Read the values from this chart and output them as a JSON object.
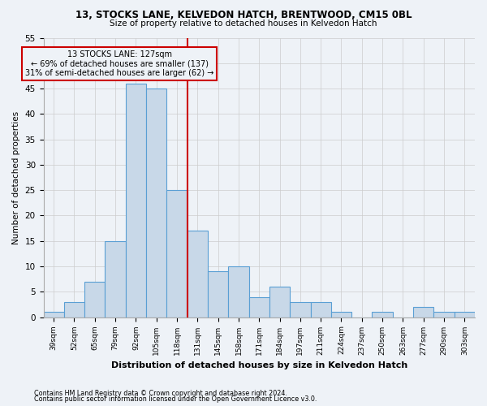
{
  "title1": "13, STOCKS LANE, KELVEDON HATCH, BRENTWOOD, CM15 0BL",
  "title2": "Size of property relative to detached houses in Kelvedon Hatch",
  "xlabel": "Distribution of detached houses by size in Kelvedon Hatch",
  "ylabel": "Number of detached properties",
  "footnote1": "Contains HM Land Registry data © Crown copyright and database right 2024.",
  "footnote2": "Contains public sector information licensed under the Open Government Licence v3.0.",
  "bin_labels": [
    "39sqm",
    "52sqm",
    "65sqm",
    "79sqm",
    "92sqm",
    "105sqm",
    "118sqm",
    "131sqm",
    "145sqm",
    "158sqm",
    "171sqm",
    "184sqm",
    "197sqm",
    "211sqm",
    "224sqm",
    "237sqm",
    "250sqm",
    "263sqm",
    "277sqm",
    "290sqm",
    "303sqm"
  ],
  "bar_values": [
    1,
    3,
    7,
    15,
    46,
    45,
    25,
    17,
    9,
    10,
    4,
    6,
    3,
    3,
    1,
    0,
    1,
    0,
    2,
    1,
    1
  ],
  "bar_color": "#c8d8e8",
  "bar_edgecolor": "#5a9fd4",
  "grid_color": "#cccccc",
  "bg_color": "#eef2f7",
  "annotation_box_color": "#cc0000",
  "annotation_line_color": "#cc0000",
  "annotation_title": "13 STOCKS LANE: 127sqm",
  "annotation_line1": "← 69% of detached houses are smaller (137)",
  "annotation_line2": "31% of semi-detached houses are larger (62) →",
  "red_line_x": 6.5,
  "ylim": [
    0,
    55
  ],
  "yticks": [
    0,
    5,
    10,
    15,
    20,
    25,
    30,
    35,
    40,
    45,
    50,
    55
  ]
}
